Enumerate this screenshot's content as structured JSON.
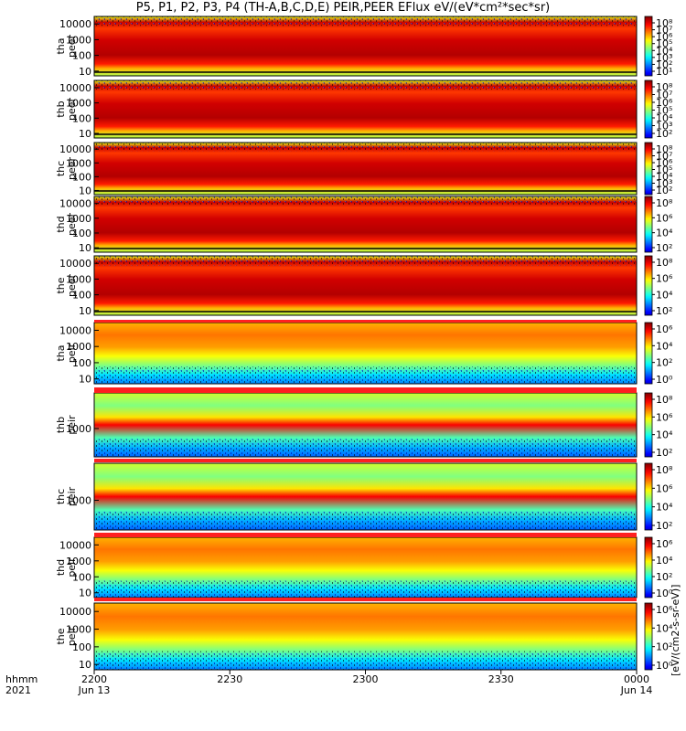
{
  "chart_data": {
    "type": "heatmap",
    "title": "P5, P1, P2, P3, P4 (TH-A,B,C,D,E) PEIR,PEER EFlux eV/(eV*cm²*sec*sr)",
    "colorbar_title": "[eV/(cm2-s-sr-eV)]",
    "x_axis": {
      "row_label_1": "hhmm",
      "row_label_2": "2021",
      "ticks": [
        {
          "value": "2200",
          "date": "Jun 13"
        },
        {
          "value": "2230",
          "date": ""
        },
        {
          "value": "2300",
          "date": ""
        },
        {
          "value": "2330",
          "date": ""
        },
        {
          "value": "0000",
          "date": "Jun 14"
        }
      ],
      "range": [
        "2021-06-13 22:00",
        "2021-06-14 00:00"
      ]
    },
    "colorbar_scale": {
      "min": 1,
      "max": 100000000,
      "log": true
    },
    "panels": [
      {
        "probe": "tha",
        "species": "peer",
        "yticks": [
          "10",
          "100",
          "1000",
          "10000"
        ],
        "cbar_ticks": [
          "10¹",
          "10²",
          "10³",
          "10⁴",
          "10⁵",
          "10⁶",
          "10⁷",
          "10⁸"
        ],
        "ylim": [
          5,
          30000
        ],
        "dominant_level": "high"
      },
      {
        "probe": "thb",
        "species": "peer",
        "yticks": [
          "10",
          "100",
          "1000",
          "10000"
        ],
        "cbar_ticks": [
          "10²",
          "10³",
          "10⁴",
          "10⁵",
          "10⁶",
          "10⁷",
          "10⁸"
        ],
        "ylim": [
          5,
          30000
        ],
        "dominant_level": "high"
      },
      {
        "probe": "thc",
        "species": "peer",
        "yticks": [
          "10",
          "100",
          "1000",
          "10000"
        ],
        "cbar_ticks": [
          "10²",
          "10³",
          "10⁴",
          "10⁵",
          "10⁶",
          "10⁷",
          "10⁸"
        ],
        "ylim": [
          5,
          30000
        ],
        "dominant_level": "high"
      },
      {
        "probe": "thd",
        "species": "peer",
        "yticks": [
          "10",
          "100",
          "1000",
          "10000"
        ],
        "cbar_ticks": [
          "10²",
          "10⁴",
          "10⁶",
          "10⁸"
        ],
        "ylim": [
          5,
          30000
        ],
        "dominant_level": "high"
      },
      {
        "probe": "the",
        "species": "peer",
        "yticks": [
          "10",
          "100",
          "1000",
          "10000"
        ],
        "cbar_ticks": [
          "10²",
          "10⁴",
          "10⁶",
          "10⁸"
        ],
        "ylim": [
          5,
          30000
        ],
        "dominant_level": "high"
      },
      {
        "probe": "tha",
        "species": "peir",
        "yticks": [
          "10",
          "100",
          "1000",
          "10000"
        ],
        "cbar_ticks": [
          "10⁰",
          "10²",
          "10⁴",
          "10⁶"
        ],
        "ylim": [
          5,
          30000
        ],
        "dominant_level": "medium"
      },
      {
        "probe": "thb",
        "species": "peir",
        "yticks": [
          "1000"
        ],
        "cbar_ticks": [
          "10²",
          "10⁴",
          "10⁶",
          "10⁸"
        ],
        "ylim": [
          5,
          30000
        ],
        "dominant_level": "band"
      },
      {
        "probe": "thc",
        "species": "peir",
        "yticks": [
          "1000"
        ],
        "cbar_ticks": [
          "10²",
          "10⁴",
          "10⁶",
          "10⁸"
        ],
        "ylim": [
          5,
          30000
        ],
        "dominant_level": "band"
      },
      {
        "probe": "thd",
        "species": "peir",
        "yticks": [
          "10",
          "100",
          "1000",
          "10000"
        ],
        "cbar_ticks": [
          "10⁰",
          "10²",
          "10⁴",
          "10⁶"
        ],
        "ylim": [
          5,
          30000
        ],
        "dominant_level": "medium"
      },
      {
        "probe": "the",
        "species": "peir",
        "yticks": [
          "10",
          "100",
          "1000",
          "10000"
        ],
        "cbar_ticks": [
          "10⁰",
          "10²",
          "10⁴",
          "10⁶"
        ],
        "ylim": [
          5,
          30000
        ],
        "dominant_level": "medium"
      }
    ]
  }
}
